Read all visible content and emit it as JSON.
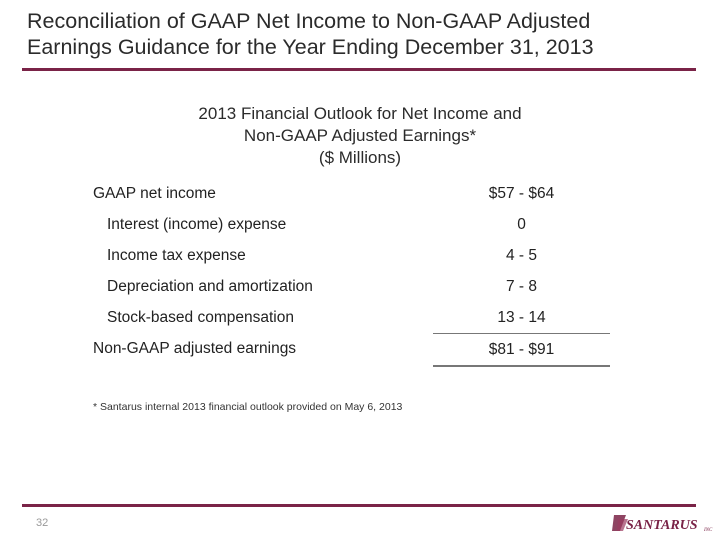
{
  "slide": {
    "title_line1": "Reconciliation of GAAP Net Income to Non-GAAP Adjusted",
    "title_line2": "Earnings Guidance for the Year Ending December 31, 2013",
    "subtitle_line1": "2013 Financial Outlook for Net Income and",
    "subtitle_line2": "Non-GAAP Adjusted Earnings*",
    "subtitle_line3": "($ Millions)",
    "rows": [
      {
        "label": "GAAP net income",
        "value": "$57 - $64"
      },
      {
        "label": "Interest (income) expense",
        "value": "0"
      },
      {
        "label": "Income tax expense",
        "value": "4 - 5"
      },
      {
        "label": "Depreciation and amortization",
        "value": "7 - 8"
      },
      {
        "label": "Stock-based compensation",
        "value": "13 - 14"
      },
      {
        "label": "Non-GAAP adjusted earnings",
        "value": "$81 - $91"
      }
    ],
    "footnote": "* Santarus internal 2013 financial outlook provided on May 6, 2013",
    "page_number": "32",
    "logo_text": "SANTARUS",
    "logo_suffix": "INC",
    "accent_color": "#7a2347"
  }
}
